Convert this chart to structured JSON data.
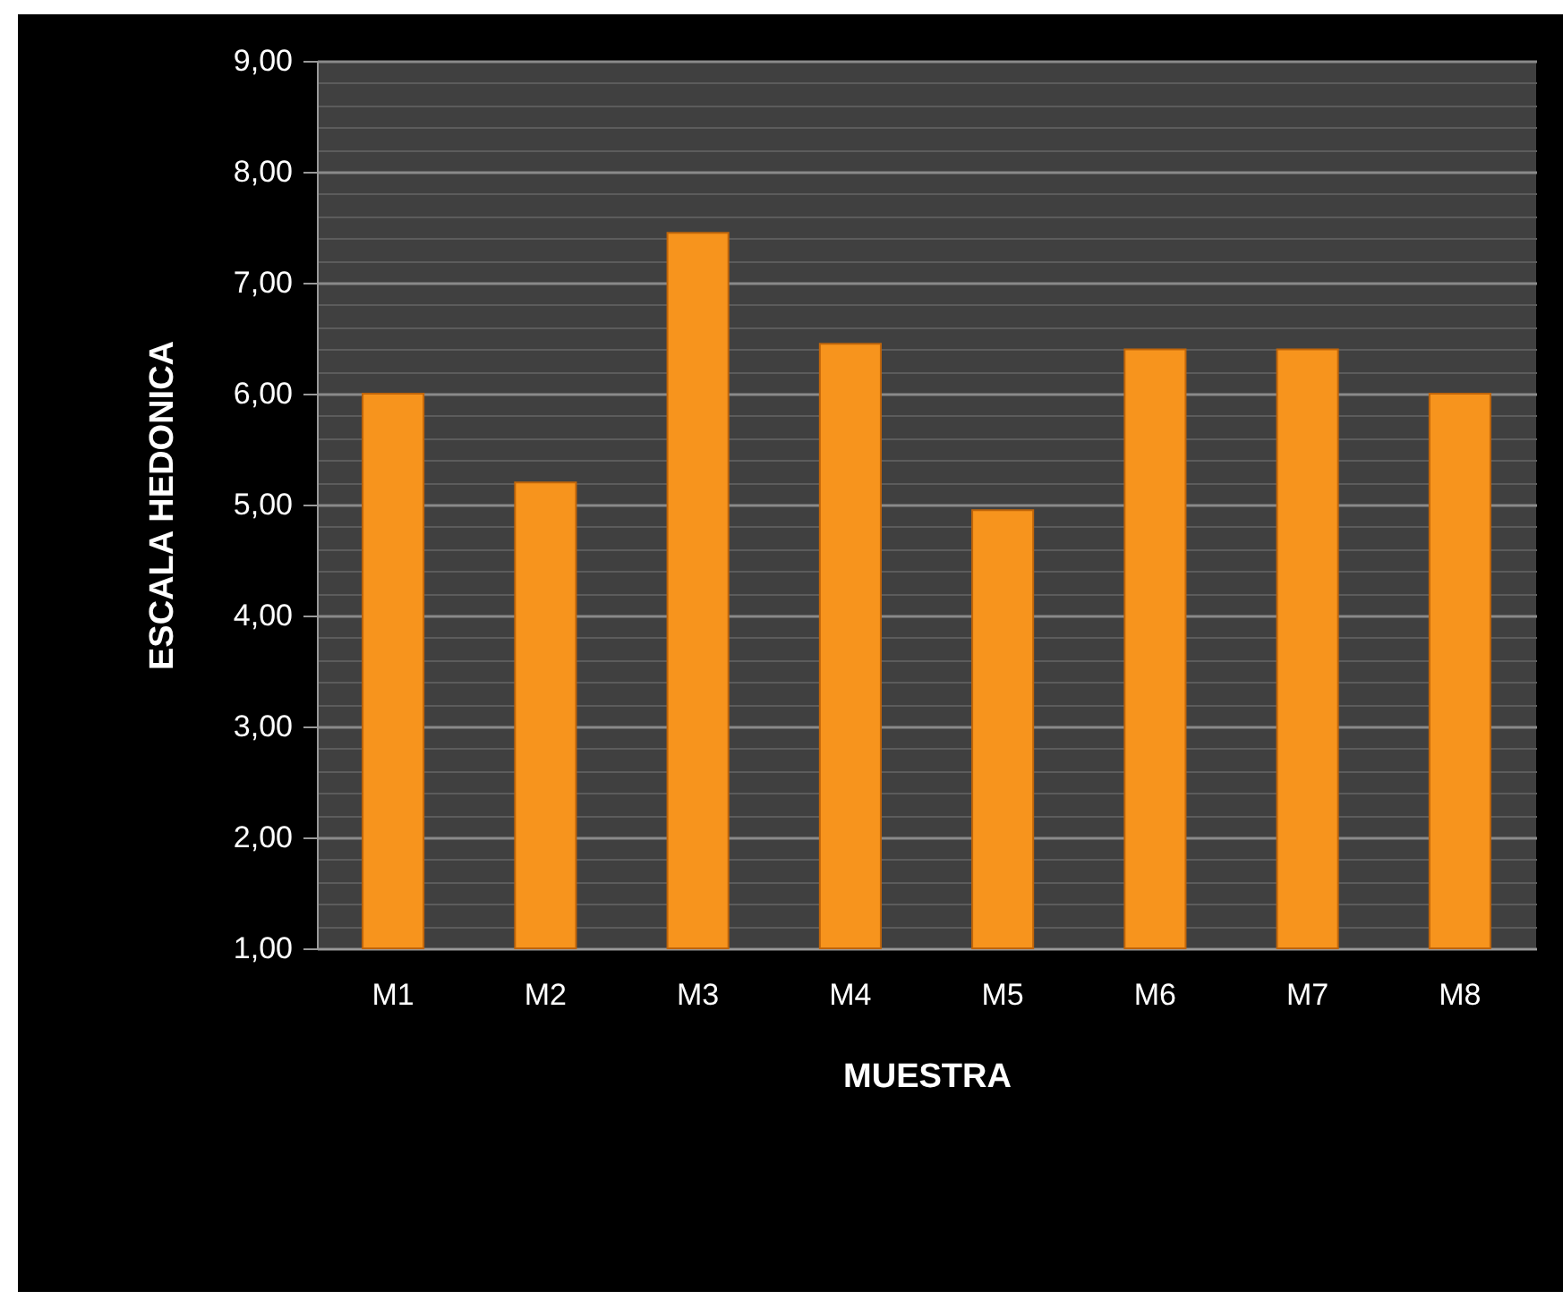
{
  "chart_data": {
    "type": "bar",
    "xlabel": "MUESTRA",
    "ylabel": "ESCALA HEDONICA",
    "categories": [
      "M1",
      "M2",
      "M3",
      "M4",
      "M5",
      "M6",
      "M7",
      "M8"
    ],
    "values": [
      6.0,
      5.2,
      7.45,
      6.45,
      4.95,
      6.4,
      6.4,
      6.0
    ],
    "color": "#f7941d",
    "ylim": [
      1,
      9
    ],
    "yticks": [
      {
        "value": 1,
        "label": "1,00"
      },
      {
        "value": 1.2,
        "label": null
      },
      {
        "value": 1.4,
        "label": null
      },
      {
        "value": 1.6,
        "label": null
      },
      {
        "value": 1.8,
        "label": null
      },
      {
        "value": 2,
        "label": "2,00"
      },
      {
        "value": 2.2,
        "label": null
      },
      {
        "value": 2.4,
        "label": null
      },
      {
        "value": 2.6,
        "label": null
      },
      {
        "value": 2.8,
        "label": null
      },
      {
        "value": 3,
        "label": "3,00"
      },
      {
        "value": 3.2,
        "label": null
      },
      {
        "value": 3.4,
        "label": null
      },
      {
        "value": 3.6,
        "label": null
      },
      {
        "value": 3.8,
        "label": null
      },
      {
        "value": 4,
        "label": "4,00"
      },
      {
        "value": 4.2,
        "label": null
      },
      {
        "value": 4.4,
        "label": null
      },
      {
        "value": 4.6,
        "label": null
      },
      {
        "value": 4.8,
        "label": null
      },
      {
        "value": 5,
        "label": "5,00"
      },
      {
        "value": 5.2,
        "label": null
      },
      {
        "value": 5.4,
        "label": null
      },
      {
        "value": 5.6,
        "label": null
      },
      {
        "value": 5.8,
        "label": null
      },
      {
        "value": 6,
        "label": "6,00"
      },
      {
        "value": 6.2,
        "label": null
      },
      {
        "value": 6.4,
        "label": null
      },
      {
        "value": 6.6,
        "label": null
      },
      {
        "value": 6.8,
        "label": null
      },
      {
        "value": 7,
        "label": "7,00"
      },
      {
        "value": 7.2,
        "label": null
      },
      {
        "value": 7.4,
        "label": null
      },
      {
        "value": 7.6,
        "label": null
      },
      {
        "value": 7.8,
        "label": null
      },
      {
        "value": 8,
        "label": "8,00"
      },
      {
        "value": 8.2,
        "label": null
      },
      {
        "value": 8.4,
        "label": null
      },
      {
        "value": 8.6,
        "label": null
      },
      {
        "value": 8.8,
        "label": null
      },
      {
        "value": 9,
        "label": "9,00"
      }
    ],
    "grid": "y"
  }
}
